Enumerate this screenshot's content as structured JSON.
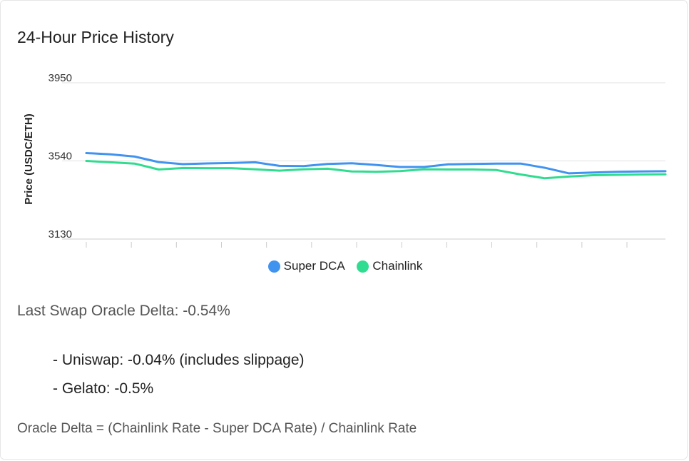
{
  "card": {
    "title": "24-Hour Price History"
  },
  "chart_data": {
    "type": "line",
    "ylabel": "Price (USDC/ETH)",
    "xlabel": "",
    "ylim": [
      3130,
      3950
    ],
    "yticks": [
      3130,
      3540,
      3950
    ],
    "grid": true,
    "legend_position": "bottom-center",
    "x_ticks_count": 13,
    "x": [
      0,
      1,
      2,
      3,
      4,
      5,
      6,
      7,
      8,
      9,
      10,
      11,
      12,
      13,
      14,
      15,
      16,
      17,
      18,
      19,
      20,
      21,
      22,
      23,
      24
    ],
    "series": [
      {
        "name": "Super DCA",
        "color": "#4193f0",
        "values": [
          3581,
          3575,
          3563,
          3534,
          3523,
          3527,
          3529,
          3533,
          3514,
          3513,
          3524,
          3528,
          3519,
          3508,
          3508,
          3522,
          3524,
          3526,
          3526,
          3504,
          3475,
          3479,
          3483,
          3485,
          3486
        ]
      },
      {
        "name": "Chainlink",
        "color": "#30dc8f",
        "values": [
          3540,
          3533,
          3526,
          3495,
          3503,
          3502,
          3502,
          3496,
          3489,
          3496,
          3499,
          3485,
          3483,
          3487,
          3496,
          3495,
          3495,
          3492,
          3469,
          3449,
          3458,
          3465,
          3467,
          3469,
          3470
        ]
      }
    ]
  },
  "delta": {
    "label": "Last Swap Oracle Delta: -0.54%"
  },
  "breakdown": {
    "items": [
      "- Uniswap: -0.04% (includes slippage)",
      "- Gelato: -0.5%"
    ]
  },
  "formula": {
    "text": "Oracle Delta = (Chainlink Rate - Super DCA Rate) / Chainlink Rate"
  }
}
